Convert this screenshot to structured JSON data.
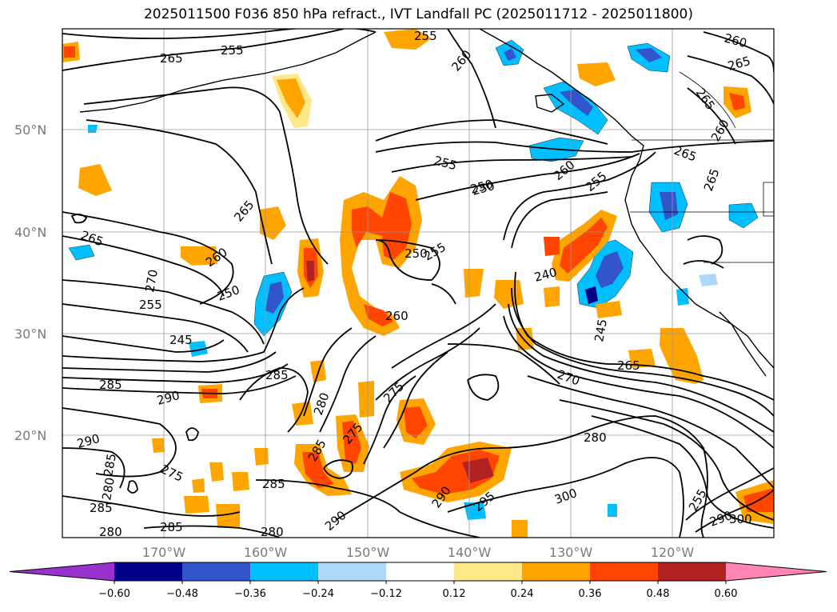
{
  "title": "2025011500 F036 850 hPa refract., IVT Landfall PC (2025011712 - 2025011800)",
  "lat_labels": [
    "50°N",
    "40°N",
    "30°N",
    "20°N"
  ],
  "lon_labels": [
    "170°W",
    "160°W",
    "150°W",
    "140°W",
    "130°W",
    "120°W"
  ],
  "colorbar": {
    "ticks": [
      "−0.60",
      "−0.48",
      "−0.36",
      "−0.24",
      "−0.12",
      "0.12",
      "0.24",
      "0.36",
      "0.48",
      "0.60"
    ],
    "colors": [
      "#9932cc",
      "#00008b",
      "#3355cc",
      "#00bfff",
      "#add8f8",
      "#ffffff",
      "#ffe88a",
      "#ffa500",
      "#ff4500",
      "#b22222",
      "#ff85b4"
    ]
  },
  "contour_labels": [
    "265",
    "255",
    "255",
    "260",
    "260",
    "265",
    "265",
    "260",
    "265",
    "255",
    "250",
    "260",
    "255",
    "265",
    "265",
    "265",
    "260",
    "270",
    "255",
    "250",
    "250",
    "250",
    "255",
    "240",
    "260",
    "245",
    "245",
    "285",
    "270",
    "265",
    "285",
    "290",
    "275",
    "280",
    "275",
    "280",
    "290",
    "285",
    "275",
    "285",
    "285",
    "280",
    "290",
    "295",
    "300",
    "290",
    "285",
    "280",
    "280",
    "285",
    "255",
    "290",
    "300"
  ]
}
